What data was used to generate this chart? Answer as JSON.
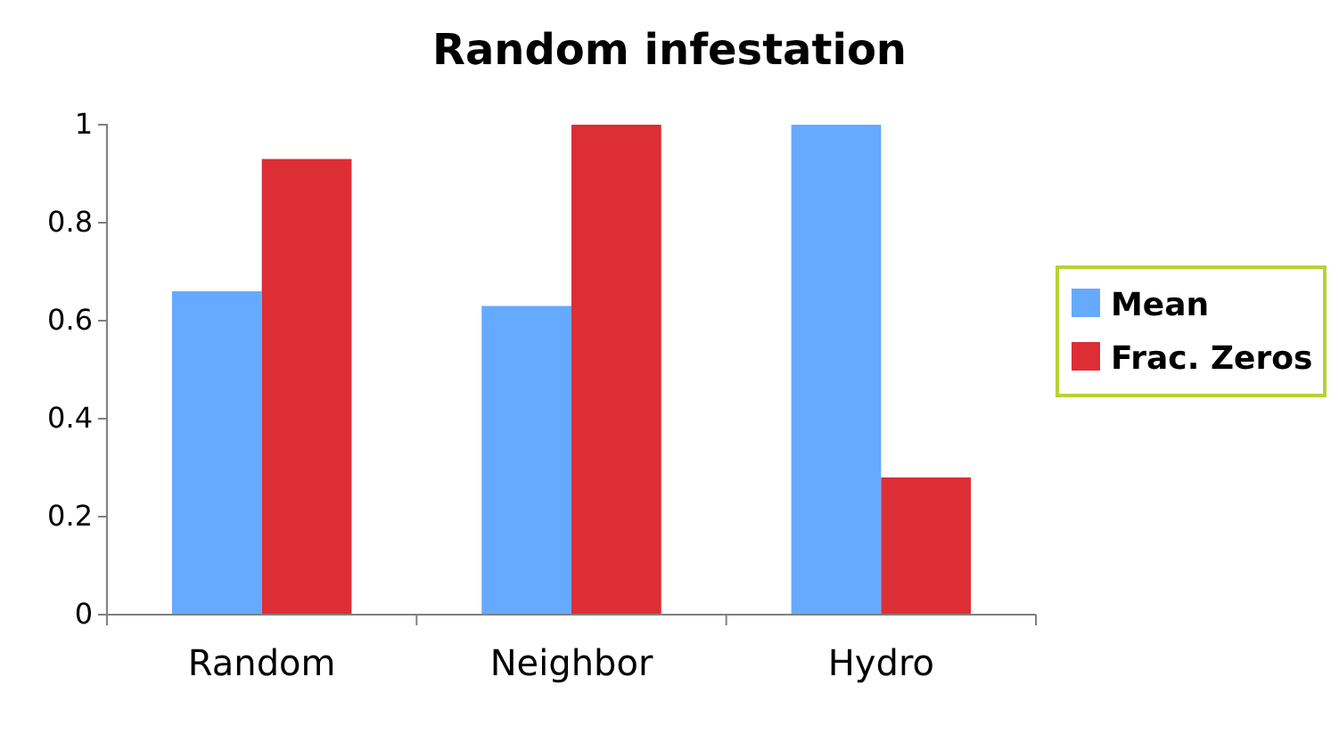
{
  "chart_data": {
    "type": "bar",
    "title": "Random infestation",
    "categories": [
      "Random",
      "Neighbor",
      "Hydro"
    ],
    "series": [
      {
        "name": "Mean",
        "color": "#66aaff",
        "values": [
          0.66,
          0.63,
          1
        ]
      },
      {
        "name": "Frac. Zeros",
        "color": "#dd2e36",
        "values": [
          0.93,
          1,
          0.28
        ]
      }
    ],
    "ylim": [
      0,
      1
    ],
    "yticks": [
      0,
      0.2,
      0.4,
      0.6,
      0.8,
      1
    ],
    "legend": "right"
  }
}
